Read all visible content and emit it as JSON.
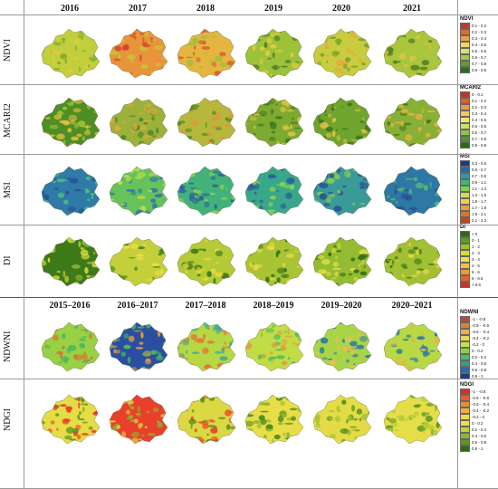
{
  "years": [
    "2016",
    "2017",
    "2018",
    "2019",
    "2020",
    "2021"
  ],
  "periods": [
    "2015–2016",
    "2016–2017",
    "2017–2018",
    "2018–2019",
    "2019–2020",
    "2020–2021"
  ],
  "rows": [
    {
      "label": "NDVI",
      "legend_title": "NDVI",
      "classes": [
        "0.1 - 0.2",
        "0.2 - 0.3",
        "0.3 - 0.4",
        "0.4 - 0.5",
        "0.5 - 0.6",
        "0.6 - 0.7",
        "0.7 - 0.8",
        "0.8 - 0.9"
      ],
      "colors": [
        "#c0392b",
        "#e06a2a",
        "#f0a040",
        "#f3d56a",
        "#d9e26a",
        "#a5c94a",
        "#5e9e30",
        "#2f6e18"
      ],
      "maps": [
        {
          "base": "#c2cf3c",
          "spots": [
            "#7fae2e",
            "#e7c640"
          ]
        },
        {
          "base": "#e8943a",
          "spots": [
            "#d2452c",
            "#c9c43a"
          ]
        },
        {
          "base": "#e4b640",
          "spots": [
            "#d85a30",
            "#9cc03a"
          ]
        },
        {
          "base": "#9cc23a",
          "spots": [
            "#507f22",
            "#e5c944"
          ]
        },
        {
          "base": "#c8cc3e",
          "spots": [
            "#e8a63c",
            "#7aa52c"
          ]
        },
        {
          "base": "#a9c63c",
          "spots": [
            "#557f26",
            "#e3c444"
          ]
        }
      ]
    },
    {
      "label": "MCARI2",
      "legend_title": "MCARI2",
      "classes": [
        "0 - 0.1",
        "0.1 - 0.2",
        "0.2 - 0.3",
        "0.3 - 0.4",
        "0.4 - 0.5",
        "0.5 - 0.6",
        "0.6 - 0.7",
        "0.7 - 0.8",
        "0.8 - 0.9"
      ],
      "colors": [
        "#b8392a",
        "#d8602c",
        "#ef9a3c",
        "#f3c95a",
        "#eee37a",
        "#cde06a",
        "#93c24a",
        "#4f962c",
        "#2b6a16"
      ],
      "maps": [
        {
          "base": "#4f8e24",
          "spots": [
            "#9bc43a",
            "#e0c040"
          ]
        },
        {
          "base": "#9ab23a",
          "spots": [
            "#e6a43c",
            "#4b8524"
          ]
        },
        {
          "base": "#b5b83c",
          "spots": [
            "#e4943a",
            "#4f8826"
          ]
        },
        {
          "base": "#7daa30",
          "spots": [
            "#3f7a1e",
            "#e0c444"
          ]
        },
        {
          "base": "#6fa42e",
          "spots": [
            "#3d781c",
            "#e3c242"
          ]
        },
        {
          "base": "#89b036",
          "spots": [
            "#3f7a1e",
            "#e6b440"
          ]
        }
      ]
    },
    {
      "label": "MSI",
      "legend_title": "MSI",
      "classes": [
        "0.3 - 0.5",
        "0.5 - 0.7",
        "0.7 - 0.9",
        "0.9 - 1.1",
        "1.1 - 1.3",
        "1.3 - 1.5",
        "1.5 - 1.7",
        "1.7 - 1.9",
        "1.9 - 2.1",
        "2.1 - 2.3"
      ],
      "colors": [
        "#1f3a8a",
        "#2a66a8",
        "#2d9aa0",
        "#3cb878",
        "#7fd24e",
        "#c9e24a",
        "#f0d04a",
        "#eba040",
        "#d8742c",
        "#b84a26"
      ],
      "maps": [
        {
          "base": "#2f7aa8",
          "spots": [
            "#2a4f96",
            "#4cc07a"
          ]
        },
        {
          "base": "#68c25a",
          "spots": [
            "#2d78a6",
            "#c6e04a"
          ]
        },
        {
          "base": "#42b27a",
          "spots": [
            "#2c5ea0",
            "#92d24e"
          ]
        },
        {
          "base": "#39a88a",
          "spots": [
            "#2b5c9c",
            "#8cd04e"
          ]
        },
        {
          "base": "#3a9a98",
          "spots": [
            "#2a5496",
            "#86cc50"
          ]
        },
        {
          "base": "#2e78a6",
          "spots": [
            "#2a4c92",
            "#58c070"
          ]
        }
      ]
    },
    {
      "label": "DI",
      "legend_title": "DI",
      "classes": [
        "< 0",
        "0 - 1",
        "1 - 2",
        "2 - 3",
        "3 - 4",
        "4 - 5",
        "5 - 6",
        "6 - 6.5",
        "> 6.5"
      ],
      "colors": [
        "#2f6a14",
        "#5e9a22",
        "#9cc232",
        "#d4dc3a",
        "#eee046",
        "#f2c23e",
        "#ee9a34",
        "#e2642c",
        "#c8342a"
      ],
      "maps": [
        {
          "base": "#3e7a1a",
          "spots": [
            "#9cc232",
            "#d8dc3c"
          ]
        },
        {
          "base": "#c4d03a",
          "spots": [
            "#3e7a1a",
            "#eede46"
          ]
        },
        {
          "base": "#b4ca36",
          "spots": [
            "#3e7a1a",
            "#ead840"
          ]
        },
        {
          "base": "#a8c434",
          "spots": [
            "#3a7418",
            "#e8da42"
          ]
        },
        {
          "base": "#94bc32",
          "spots": [
            "#346e16",
            "#dedc40"
          ]
        },
        {
          "base": "#a2c034",
          "spots": [
            "#3a7418",
            "#e6d842"
          ]
        }
      ]
    },
    {
      "label": "NDWNI",
      "legend_title": "NDWNI",
      "classes": [
        "-1 - -0.8",
        "-0.8 - -0.6",
        "-0.6 - -0.4",
        "-0.4 - -0.2",
        "-0.2 - 0",
        "0 - 0.2",
        "0.2 - 0.4",
        "0.4 - 0.6",
        "0.6 - 0.8",
        "0.8 - 1"
      ],
      "colors": [
        "#b84a3a",
        "#d8823c",
        "#eab24a",
        "#e8d85a",
        "#c8e24a",
        "#8cd24a",
        "#4cbe5e",
        "#2ea08a",
        "#2a6aa6",
        "#1e3a86"
      ],
      "maps": [
        {
          "base": "#9ad044",
          "spots": [
            "#d8702e",
            "#4ab85e"
          ]
        },
        {
          "base": "#2a4fa0",
          "spots": [
            "#4cbe5e",
            "#e0a040"
          ]
        },
        {
          "base": "#b6d844",
          "spots": [
            "#e0783a",
            "#3aa8a0"
          ]
        },
        {
          "base": "#c2dc46",
          "spots": [
            "#e0a040",
            "#4cbe5e"
          ]
        },
        {
          "base": "#a8d448",
          "spots": [
            "#2d7aa4",
            "#e6c24a"
          ]
        },
        {
          "base": "#b8d846",
          "spots": [
            "#2d78a2",
            "#e6b444"
          ]
        }
      ]
    },
    {
      "label": "NDGI",
      "legend_title": "NDGI",
      "classes": [
        "-1 - -0.8",
        "-0.8 - -0.6",
        "-0.6 - -0.4",
        "-0.4 - -0.2",
        "-0.2 - 0",
        "0 - 0.2",
        "0.2 - 0.4",
        "0.4 - 0.6",
        "0.6 - 0.8",
        "0.8 - 1"
      ],
      "colors": [
        "#e62a20",
        "#ea5a2c",
        "#ee8a36",
        "#f0b040",
        "#f2d84a",
        "#e6e24a",
        "#c0d23e",
        "#8eb630",
        "#5e9624",
        "#2e6a14"
      ],
      "maps": [
        {
          "base": "#e6dc46",
          "spots": [
            "#e63a24",
            "#5e9624"
          ]
        },
        {
          "base": "#e8402a",
          "spots": [
            "#f0d84a",
            "#8eb630"
          ]
        },
        {
          "base": "#dcd844",
          "spots": [
            "#e84a28",
            "#4e8a1e"
          ]
        },
        {
          "base": "#e8de48",
          "spots": [
            "#8eb630",
            "#4e8a1e"
          ]
        },
        {
          "base": "#e4dc46",
          "spots": [
            "#a4c234",
            "#4e8a1e"
          ]
        },
        {
          "base": "#e6de48",
          "spots": [
            "#b4ca38",
            "#5e9624"
          ]
        }
      ]
    }
  ]
}
